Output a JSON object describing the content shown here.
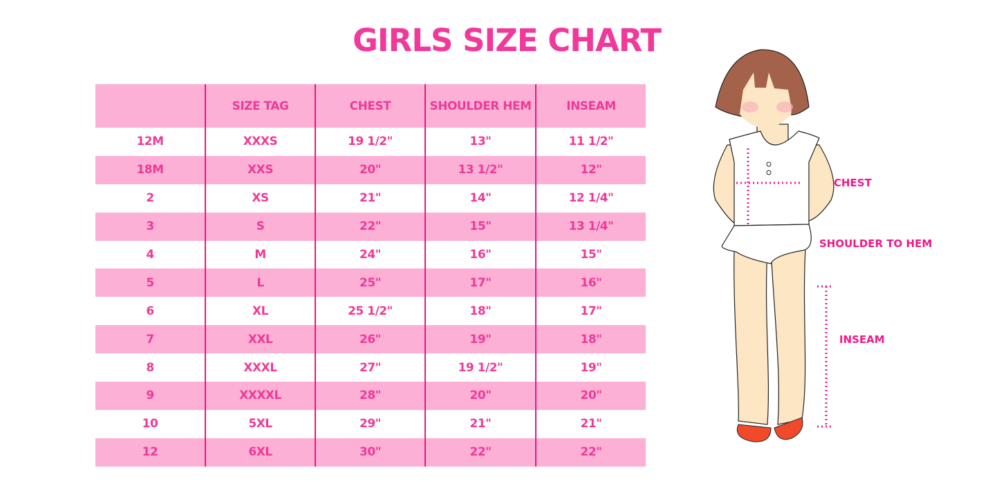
{
  "title": "GIRLS SIZE CHART",
  "table": {
    "headers": [
      "",
      "SIZE TAG",
      "CHEST",
      "SHOULDER HEM",
      "INSEAM"
    ],
    "rows": [
      [
        "12M",
        "XXXS",
        "19 1/2\"",
        "13\"",
        "11 1/2\""
      ],
      [
        "18M",
        "XXS",
        "20\"",
        "13 1/2\"",
        "12\""
      ],
      [
        "2",
        "XS",
        "21\"",
        "14\"",
        "12 1/4\""
      ],
      [
        "3",
        "S",
        "22\"",
        "15\"",
        "13 1/4\""
      ],
      [
        "4",
        "M",
        "24\"",
        "16\"",
        "15\""
      ],
      [
        "5",
        "L",
        "25\"",
        "17\"",
        "16\""
      ],
      [
        "6",
        "XL",
        "25 1/2\"",
        "18\"",
        "17\""
      ],
      [
        "7",
        "XXL",
        "26\"",
        "19\"",
        "18\""
      ],
      [
        "8",
        "XXXL",
        "27\"",
        "19 1/2\"",
        "19\""
      ],
      [
        "9",
        "XXXXL",
        "28\"",
        "20\"",
        "20\""
      ],
      [
        "10",
        "5XL",
        "29\"",
        "21\"",
        "21\""
      ],
      [
        "12",
        "6XL",
        "30\"",
        "22\"",
        "22\""
      ]
    ]
  },
  "figure": {
    "chest_label": "CHEST",
    "shoulder_label": "SHOULDER TO HEM",
    "inseam_label": "INSEAM"
  },
  "colors": {
    "accent": "#ee3a96",
    "row_pink": "#fcb0d6",
    "divider": "#e5177e",
    "hair": "#a5624a",
    "skin": "#fde6c4",
    "shoes": "#f04a2a"
  }
}
